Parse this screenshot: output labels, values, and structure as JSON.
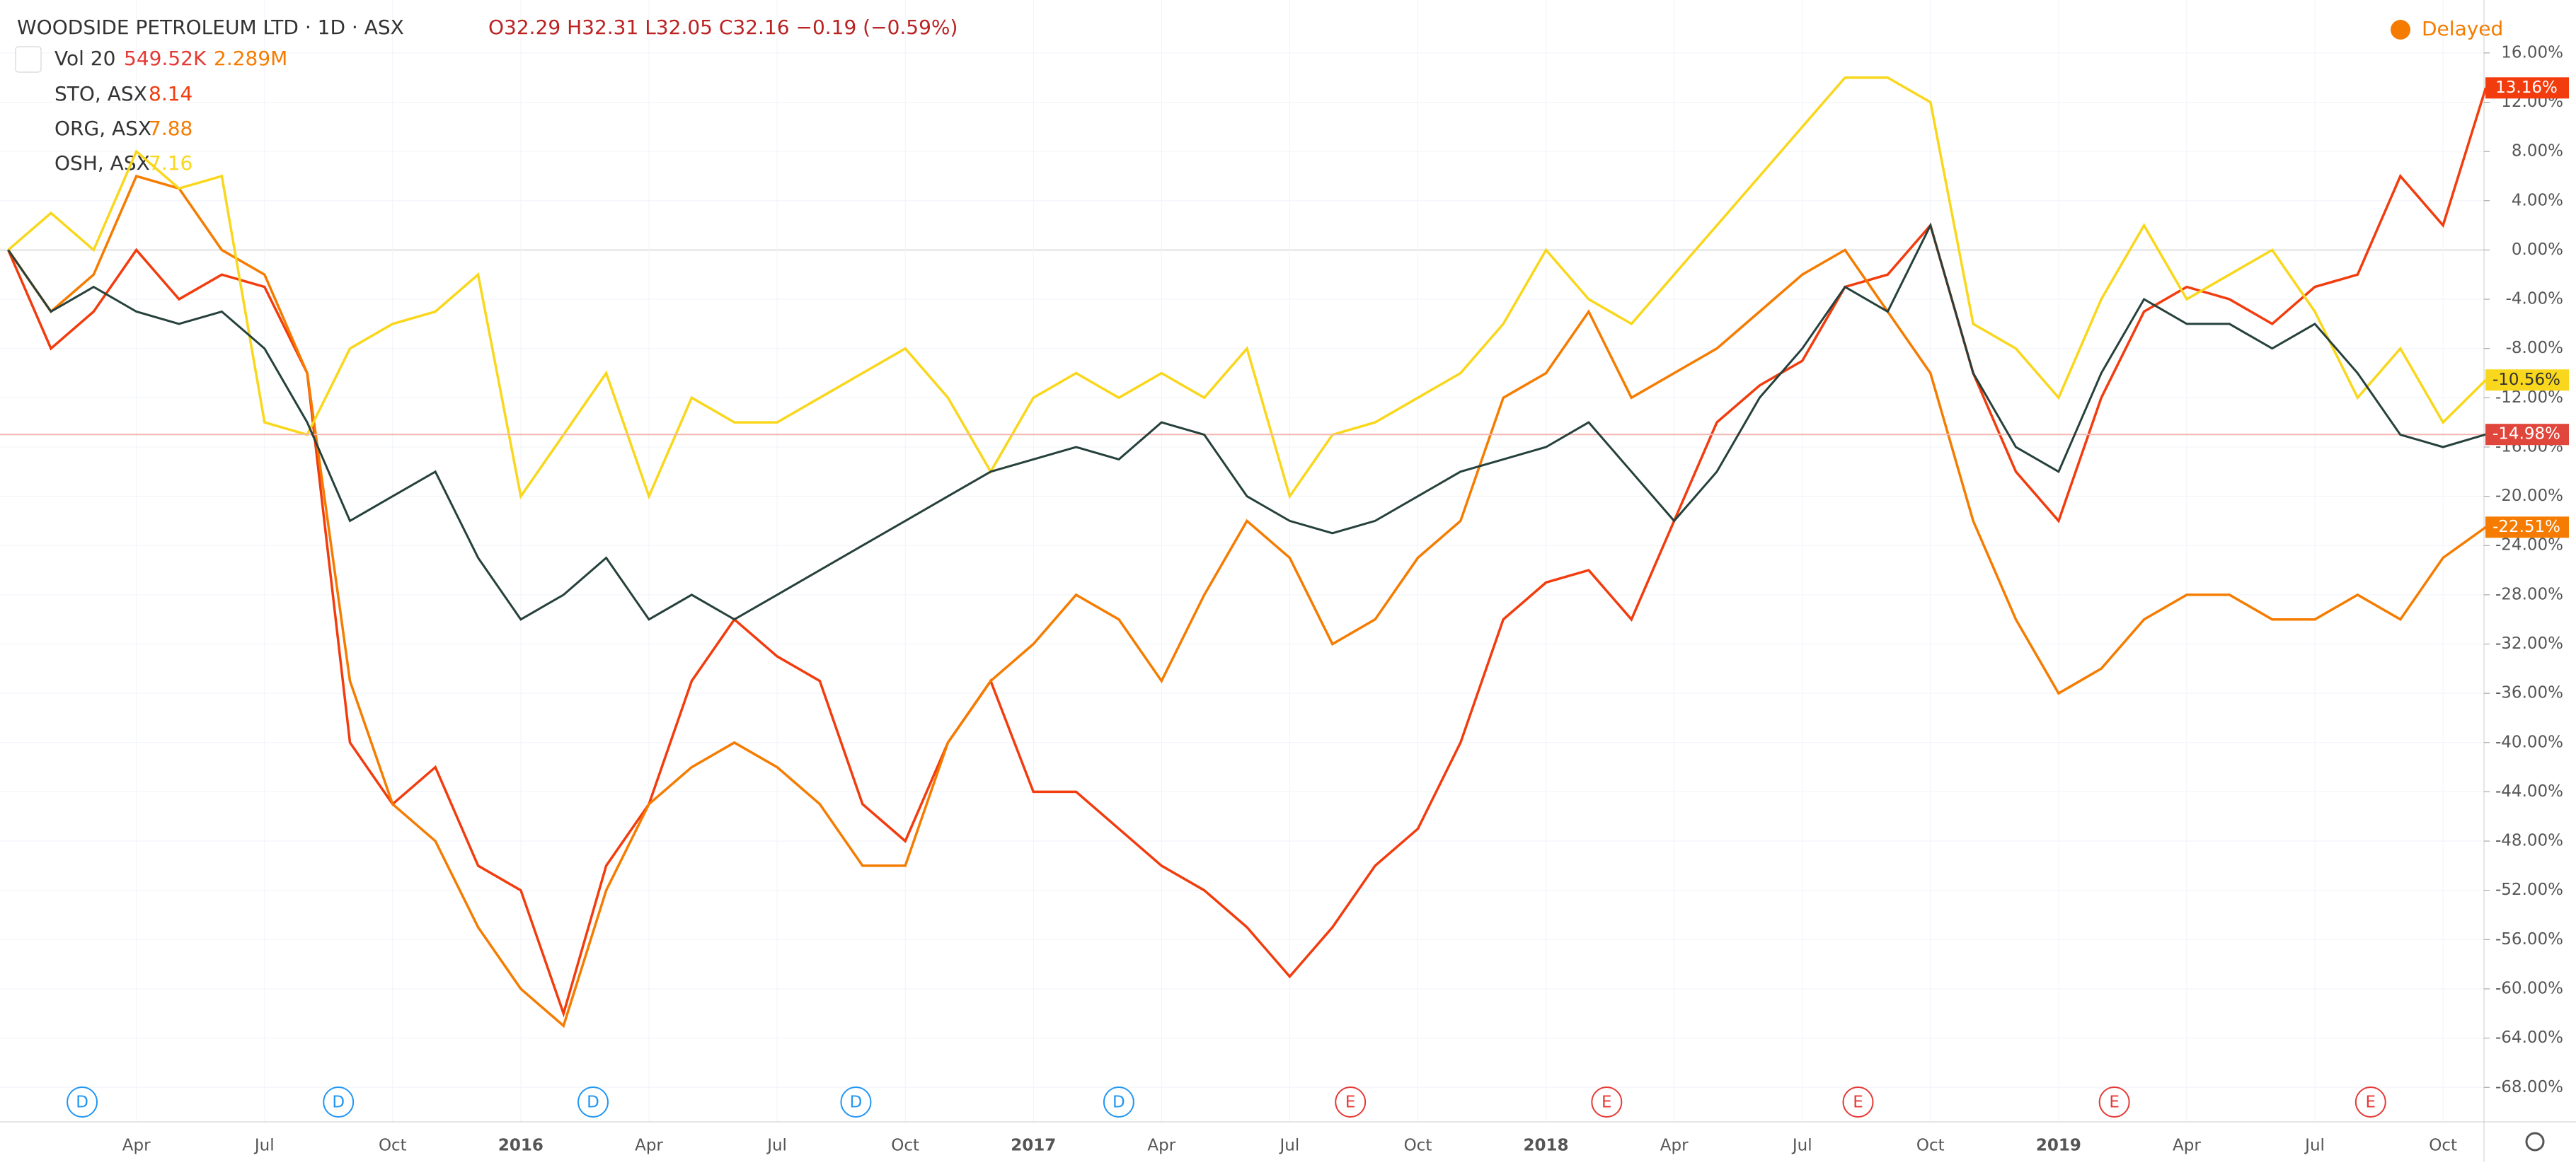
{
  "header": {
    "symbol": "WOODSIDE PETROLEUM LTD · 1D · ASX",
    "ohlc": "O32.29 H32.31 L32.05 C32.16 −0.19 (−0.59%)",
    "volume": "Vol 20",
    "vol_a": "549.52K",
    "vol_b": "2.289M",
    "status": "Delayed"
  },
  "chart_data": {
    "type": "line",
    "categories": [
      null,
      null,
      null,
      "Apr",
      null,
      null,
      "Jul",
      null,
      null,
      "Oct",
      null,
      null,
      "2016",
      null,
      null,
      "Apr",
      null,
      null,
      "Jul",
      null,
      null,
      "Oct",
      null,
      null,
      "2017",
      null,
      null,
      "Apr",
      null,
      null,
      "Jul",
      null,
      null,
      "Oct",
      null,
      null,
      "2018",
      null,
      null,
      "Apr",
      null,
      null,
      "Jul",
      null,
      null,
      "Oct",
      null,
      null,
      "2019",
      null,
      null,
      "Apr",
      null,
      null,
      "Jul",
      null,
      null,
      "Oct",
      null
    ],
    "ylim": [
      -70.8,
      20.3
    ],
    "yticks": [
      {
        "value": 16,
        "label": "16.00%"
      },
      {
        "value": 12,
        "label": "12.00%"
      },
      {
        "value": 8,
        "label": "8.00%"
      },
      {
        "value": 4,
        "label": "4.00%"
      },
      {
        "value": 0,
        "label": "0.00%"
      },
      {
        "value": -4,
        "label": "-4.00%"
      },
      {
        "value": -8,
        "label": "-8.00%"
      },
      {
        "value": -12,
        "label": "-12.00%"
      },
      {
        "value": -16,
        "label": "-16.00%"
      },
      {
        "value": -20,
        "label": "-20.00%"
      },
      {
        "value": -24,
        "label": "-24.00%"
      },
      {
        "value": -28,
        "label": "-28.00%"
      },
      {
        "value": -32,
        "label": "-32.00%"
      },
      {
        "value": -36,
        "label": "-36.00%"
      },
      {
        "value": -40,
        "label": "-40.00%"
      },
      {
        "value": -44,
        "label": "-44.00%"
      },
      {
        "value": -48,
        "label": "-48.00%"
      },
      {
        "value": -52,
        "label": "-52.00%"
      },
      {
        "value": -56,
        "label": "-56.00%"
      },
      {
        "value": -60,
        "label": "-60.00%"
      },
      {
        "value": -64,
        "label": "-64.00%"
      },
      {
        "value": -68,
        "label": "-68.00%"
      }
    ],
    "grid": true,
    "series": [
      {
        "name": "STO, ASX",
        "price": "8.14",
        "color": "#f23c0e",
        "end_label": "13.16%",
        "values": [
          0,
          -8,
          -5,
          0,
          -4,
          -2,
          -3,
          -10,
          -40,
          -45,
          -42,
          -50,
          -52,
          -62,
          -50,
          -45,
          -35,
          -30,
          -33,
          -35,
          -45,
          -48,
          -40,
          -35,
          -44,
          -44,
          -47,
          -50,
          -52,
          -55,
          -59,
          -55,
          -50,
          -47,
          -40,
          -30,
          -27,
          -26,
          -30,
          -22,
          -14,
          -11,
          -9,
          -3,
          -2,
          2,
          -10,
          -18,
          -22,
          -12,
          -5,
          -3,
          -4,
          -6,
          -3,
          -2,
          6,
          2,
          13.16
        ]
      },
      {
        "name": "ORG, ASX",
        "price": "7.88",
        "color": "#f57c00",
        "end_label": "-22.51%",
        "values": [
          0,
          -5,
          -2,
          6,
          5,
          0,
          -2,
          -10,
          -35,
          -45,
          -48,
          -55,
          -60,
          -63,
          -52,
          -45,
          -42,
          -40,
          -42,
          -45,
          -50,
          -50,
          -40,
          -35,
          -32,
          -28,
          -30,
          -35,
          -28,
          -22,
          -25,
          -32,
          -30,
          -25,
          -22,
          -12,
          -10,
          -5,
          -12,
          -10,
          -8,
          -5,
          -2,
          0,
          -5,
          -10,
          -22,
          -30,
          -36,
          -34,
          -30,
          -28,
          -28,
          -30,
          -30,
          -28,
          -30,
          -25,
          -22.51
        ]
      },
      {
        "name": "OSH, ASX",
        "price": "7.16",
        "color": "#f9d71c",
        "end_label": "-10.56%",
        "values": [
          0,
          3,
          0,
          8,
          5,
          6,
          -14,
          -15,
          -8,
          -6,
          -5,
          -2,
          -20,
          -15,
          -10,
          -20,
          -12,
          -14,
          -14,
          -12,
          -10,
          -8,
          -12,
          -18,
          -12,
          -10,
          -12,
          -10,
          -12,
          -8,
          -20,
          -15,
          -14,
          -12,
          -10,
          -6,
          0,
          -4,
          -6,
          -2,
          2,
          6,
          10,
          14,
          14,
          12,
          -6,
          -8,
          -12,
          -4,
          2,
          -4,
          -2,
          0,
          -5,
          -12,
          -8,
          -14,
          -10.56
        ]
      },
      {
        "name": "WOODSIDE PETROLEUM LTD",
        "color": "#26413c",
        "end_label": "-14.98%",
        "values": [
          0,
          -5,
          -3,
          -5,
          -6,
          -5,
          -8,
          -14,
          -22,
          -20,
          -18,
          -25,
          -30,
          -28,
          -25,
          -30,
          -28,
          -30,
          -28,
          -26,
          -24,
          -22,
          -20,
          -18,
          -17,
          -16,
          -17,
          -14,
          -15,
          -20,
          -22,
          -23,
          -22,
          -20,
          -18,
          -17,
          -16,
          -14,
          -18,
          -22,
          -18,
          -12,
          -8,
          -3,
          -5,
          2,
          -10,
          -16,
          -18,
          -10,
          -4,
          -6,
          -6,
          -8,
          -6,
          -10,
          -15,
          -16,
          -14.98
        ]
      }
    ]
  },
  "events": [
    "D",
    "D",
    "D",
    "D",
    "D",
    "E",
    "E",
    "E",
    "E",
    "E"
  ]
}
